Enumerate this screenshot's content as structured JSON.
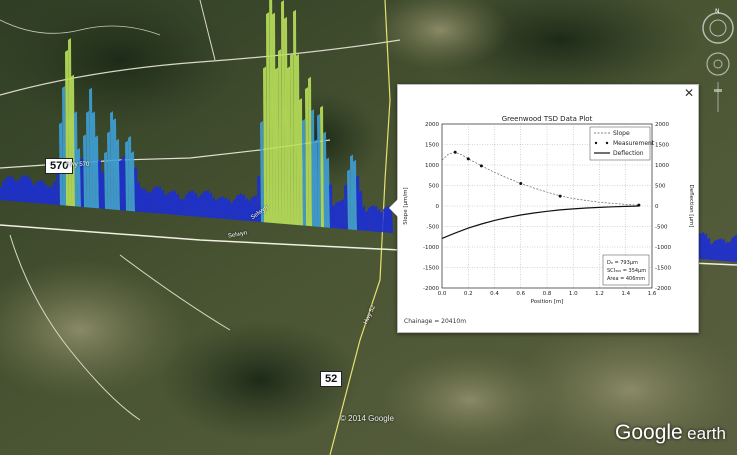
{
  "map": {
    "shields": [
      {
        "label": "570"
      },
      {
        "label": "52"
      }
    ],
    "road_labels": [
      "Hwy 570",
      "Selwyn",
      "Selwyn",
      "Hwy 52"
    ],
    "copyright": "© 2014 Google",
    "logo": {
      "google": "Google",
      "earth": "earth"
    },
    "compass_letter": "N",
    "colors": {
      "bars_low": "#1c2fd6",
      "bars_mid": "#3ea0d8",
      "bars_high": "#b9e05a"
    }
  },
  "popup": {
    "close_label": "✕",
    "chainage": "Chainage = 20410m"
  },
  "chart_data": {
    "type": "line",
    "title": "Greenwood TSD Data Plot",
    "xlabel": "Position [m]",
    "ylabel": "Slope [µm/m]",
    "y2label": "Deflection [µm]",
    "xlim": [
      0,
      1.6
    ],
    "ylim": [
      -2000,
      2000
    ],
    "y2lim": [
      -2000,
      2000
    ],
    "xticks": [
      "0.0",
      "0.2",
      "0.4",
      "0.6",
      "0.8",
      "1.0",
      "1.2",
      "1.4",
      "1.6"
    ],
    "yticks": [
      "2000",
      "1500",
      "1000",
      "500",
      "0",
      "-500",
      "-1000",
      "-1500",
      "-2000"
    ],
    "y2ticks": [
      "2000",
      "1500",
      "1000",
      "500",
      "0",
      "-500",
      "-1000",
      "-1500",
      "-2000"
    ],
    "grid": true,
    "legend_position": "top-right",
    "series": [
      {
        "name": "Slope",
        "style": "dashed",
        "x": [
          0.0,
          0.05,
          0.1,
          0.15,
          0.2,
          0.3,
          0.4,
          0.5,
          0.6,
          0.7,
          0.8,
          0.9,
          1.0,
          1.2,
          1.4,
          1.5
        ],
        "y": [
          1120,
          1270,
          1310,
          1250,
          1150,
          980,
          820,
          680,
          550,
          440,
          340,
          250,
          180,
          90,
          40,
          20
        ]
      },
      {
        "name": "Measurement",
        "style": "markers",
        "x": [
          0.1,
          0.2,
          0.3,
          0.6,
          0.9,
          1.5
        ],
        "y": [
          1310,
          1150,
          980,
          550,
          240,
          20
        ]
      },
      {
        "name": "Deflection",
        "style": "solid",
        "x": [
          0.0,
          0.1,
          0.2,
          0.3,
          0.4,
          0.5,
          0.6,
          0.7,
          0.8,
          0.9,
          1.0,
          1.1,
          1.2,
          1.3,
          1.4,
          1.5
        ],
        "y": [
          -790,
          -660,
          -540,
          -440,
          -350,
          -280,
          -220,
          -170,
          -130,
          -95,
          -70,
          -50,
          -35,
          -20,
          -10,
          0
        ]
      }
    ],
    "annotation": {
      "lines": [
        "D₀ = 793µm",
        "SCI₃₀₀ = 354µm",
        "Area = 406mm"
      ]
    }
  }
}
